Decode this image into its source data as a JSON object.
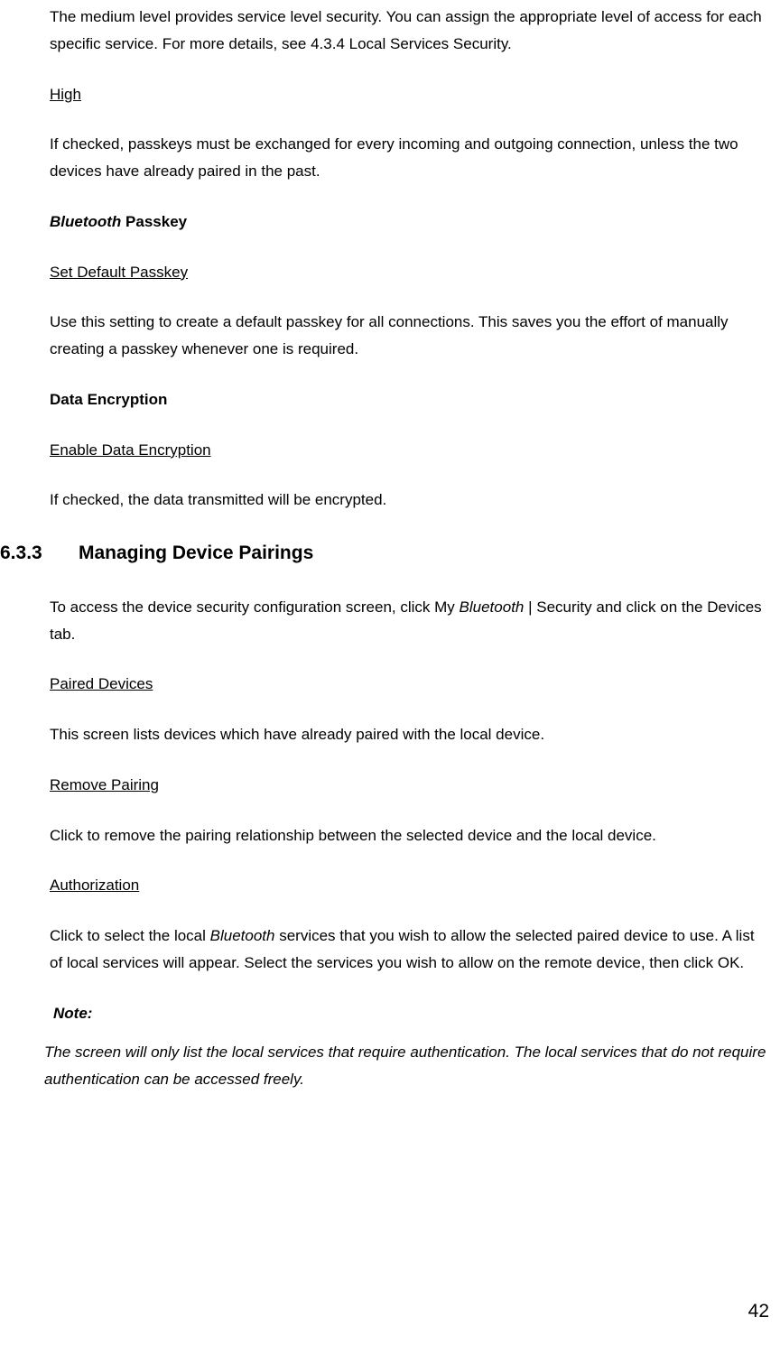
{
  "para1": "The medium level provides service level security. You can assign the appropriate level of access for each specific service. For more details, see 4.3.4 Local Services Security.",
  "heading_high": "High",
  "para_high": "If checked, passkeys must be exchanged for every incoming and outgoing connection, unless the two devices have already paired in the past.",
  "heading_bt_italic": "Bluetooth",
  "heading_bt_rest": " Passkey",
  "heading_set_default": "Set Default Passkey",
  "para_set_default": "Use this setting to create a default passkey for all connections. This saves you the effort of manually creating a passkey whenever one is required.",
  "heading_data_enc": "Data Encryption",
  "heading_enable_enc": "Enable Data Encryption",
  "para_enable_enc": "If checked, the data transmitted will be encrypted.",
  "section_number": "6.3.3",
  "section_title": "Managing Device Pairings",
  "para_section_pre": "To access the device security configuration screen, click My ",
  "para_section_italic": "Bluetooth",
  "para_section_post": " | Security and click on the Devices tab.",
  "heading_paired": "Paired Devices",
  "para_paired": "This screen lists devices which have already paired with the local device.",
  "heading_remove": "Remove Pairing",
  "para_remove": "Click to remove the pairing relationship between the selected device and the local device.",
  "heading_auth": "Authorization",
  "para_auth_pre": "Click to select the local ",
  "para_auth_italic": "Bluetooth",
  "para_auth_post": " services that you wish to allow the selected paired device to use. A list of local services will appear. Select the services you wish to allow on the remote device, then click OK.",
  "note_label": "Note:",
  "note_text": "The screen will only list the local services that require authentication. The local services that do not require authentication can be accessed freely.",
  "page_number": "42"
}
